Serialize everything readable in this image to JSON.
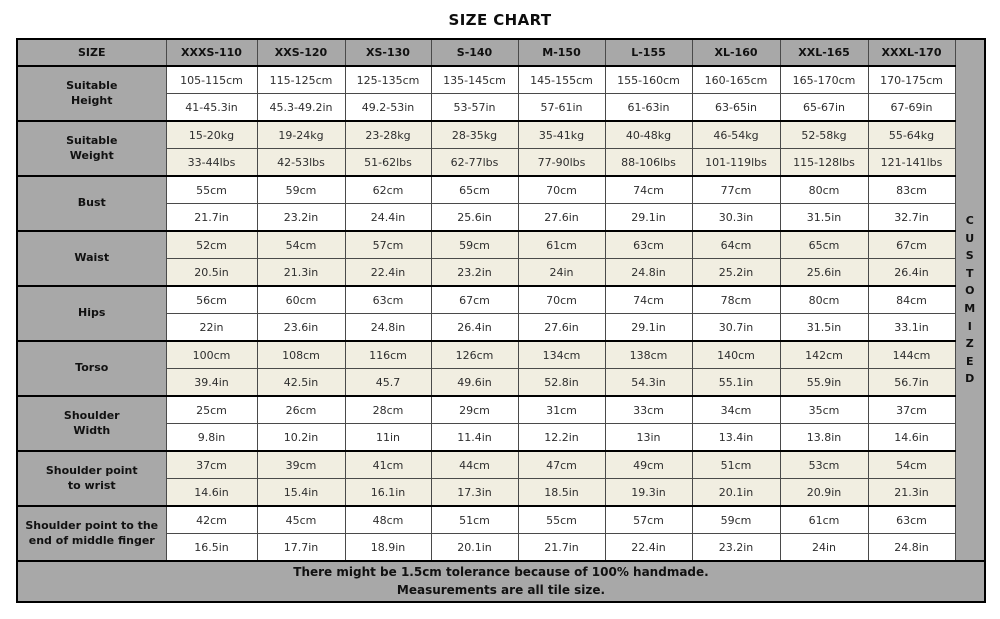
{
  "title": "SIZE CHART",
  "colors": {
    "header_gray": "#a8a8a8",
    "cream_row": "#f1eee1",
    "white_row": "#ffffff",
    "outer_border": "#000000",
    "cell_border": "#4a4a4a",
    "inner_divider": "#8f8f8f",
    "text": "#111111"
  },
  "table": {
    "customized": "CUSTOMIZED",
    "columns": [
      "SIZE",
      "XXXS-110",
      "XXS-120",
      "XS-130",
      "S-140",
      "M-150",
      "L-155",
      "XL-160",
      "XXL-165",
      "XXXL-170"
    ],
    "groups": [
      {
        "label_lines": [
          "Suitable",
          "Height"
        ],
        "shade": "white",
        "rows": [
          [
            "105-115cm",
            "115-125cm",
            "125-135cm",
            "135-145cm",
            "145-155cm",
            "155-160cm",
            "160-165cm",
            "165-170cm",
            "170-175cm"
          ],
          [
            "41-45.3in",
            "45.3-49.2in",
            "49.2-53in",
            "53-57in",
            "57-61in",
            "61-63in",
            "63-65in",
            "65-67in",
            "67-69in"
          ]
        ]
      },
      {
        "label_lines": [
          "Suitable",
          "Weight"
        ],
        "shade": "cream",
        "rows": [
          [
            "15-20kg",
            "19-24kg",
            "23-28kg",
            "28-35kg",
            "35-41kg",
            "40-48kg",
            "46-54kg",
            "52-58kg",
            "55-64kg"
          ],
          [
            "33-44lbs",
            "42-53lbs",
            "51-62lbs",
            "62-77lbs",
            "77-90lbs",
            "88-106lbs",
            "101-119lbs",
            "115-128lbs",
            "121-141lbs"
          ]
        ]
      },
      {
        "label_lines": [
          "Bust"
        ],
        "shade": "white",
        "rows": [
          [
            "55cm",
            "59cm",
            "62cm",
            "65cm",
            "70cm",
            "74cm",
            "77cm",
            "80cm",
            "83cm"
          ],
          [
            "21.7in",
            "23.2in",
            "24.4in",
            "25.6in",
            "27.6in",
            "29.1in",
            "30.3in",
            "31.5in",
            "32.7in"
          ]
        ]
      },
      {
        "label_lines": [
          "Waist"
        ],
        "shade": "cream",
        "rows": [
          [
            "52cm",
            "54cm",
            "57cm",
            "59cm",
            "61cm",
            "63cm",
            "64cm",
            "65cm",
            "67cm"
          ],
          [
            "20.5in",
            "21.3in",
            "22.4in",
            "23.2in",
            "24in",
            "24.8in",
            "25.2in",
            "25.6in",
            "26.4in"
          ]
        ]
      },
      {
        "label_lines": [
          "Hips"
        ],
        "shade": "white",
        "rows": [
          [
            "56cm",
            "60cm",
            "63cm",
            "67cm",
            "70cm",
            "74cm",
            "78cm",
            "80cm",
            "84cm"
          ],
          [
            "22in",
            "23.6in",
            "24.8in",
            "26.4in",
            "27.6in",
            "29.1in",
            "30.7in",
            "31.5in",
            "33.1in"
          ]
        ]
      },
      {
        "label_lines": [
          "Torso"
        ],
        "shade": "cream",
        "rows": [
          [
            "100cm",
            "108cm",
            "116cm",
            "126cm",
            "134cm",
            "138cm",
            "140cm",
            "142cm",
            "144cm"
          ],
          [
            "39.4in",
            "42.5in",
            "45.7",
            "49.6in",
            "52.8in",
            "54.3in",
            "55.1in",
            "55.9in",
            "56.7in"
          ]
        ]
      },
      {
        "label_lines": [
          "Shoulder",
          "Width"
        ],
        "shade": "white",
        "rows": [
          [
            "25cm",
            "26cm",
            "28cm",
            "29cm",
            "31cm",
            "33cm",
            "34cm",
            "35cm",
            "37cm"
          ],
          [
            "9.8in",
            "10.2in",
            "11in",
            "11.4in",
            "12.2in",
            "13in",
            "13.4in",
            "13.8in",
            "14.6in"
          ]
        ]
      },
      {
        "label_lines": [
          "Shoulder point",
          "to wrist"
        ],
        "shade": "cream",
        "rows": [
          [
            "37cm",
            "39cm",
            "41cm",
            "44cm",
            "47cm",
            "49cm",
            "51cm",
            "53cm",
            "54cm"
          ],
          [
            "14.6in",
            "15.4in",
            "16.1in",
            "17.3in",
            "18.5in",
            "19.3in",
            "20.1in",
            "20.9in",
            "21.3in"
          ]
        ]
      },
      {
        "label_lines": [
          "Shoulder point to the",
          "end of middle finger"
        ],
        "shade": "white",
        "rows": [
          [
            "42cm",
            "45cm",
            "48cm",
            "51cm",
            "55cm",
            "57cm",
            "59cm",
            "61cm",
            "63cm"
          ],
          [
            "16.5in",
            "17.7in",
            "18.9in",
            "20.1in",
            "21.7in",
            "22.4in",
            "23.2in",
            "24in",
            "24.8in"
          ]
        ]
      }
    ]
  },
  "footer": {
    "line1": "There might be 1.5cm tolerance because of 100% handmade.",
    "line2": "Measurements are all tile size."
  }
}
